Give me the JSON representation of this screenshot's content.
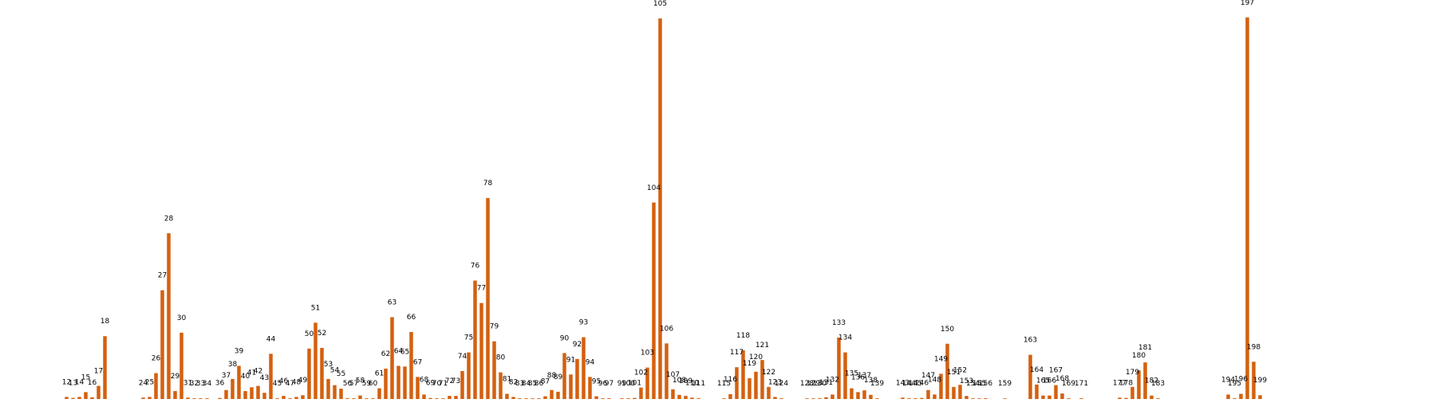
{
  "chart_data": {
    "type": "bar",
    "title": "",
    "xlabel": "",
    "ylabel": "",
    "grid": false,
    "axes_visible": false,
    "bar_color": "#d4600f",
    "ylim": [
      0,
      110
    ],
    "points": [
      {
        "x": 12,
        "y": 0.6,
        "label": "12"
      },
      {
        "x": 13,
        "y": 0.3,
        "label": "13"
      },
      {
        "x": 14,
        "y": 0.6,
        "label": "14"
      },
      {
        "x": 15,
        "y": 2.0,
        "label": "15"
      },
      {
        "x": 16,
        "y": 0.5,
        "label": "16"
      },
      {
        "x": 17,
        "y": 3.8,
        "label": "17"
      },
      {
        "x": 18,
        "y": 18.2,
        "label": "18"
      },
      {
        "x": 24,
        "y": 0.4,
        "label": "24"
      },
      {
        "x": 25,
        "y": 0.6,
        "label": "25"
      },
      {
        "x": 26,
        "y": 7.5,
        "label": "26"
      },
      {
        "x": 27,
        "y": 31.5,
        "label": "27"
      },
      {
        "x": 28,
        "y": 48.0,
        "label": "28"
      },
      {
        "x": 29,
        "y": 2.3,
        "label": "29"
      },
      {
        "x": 30,
        "y": 19.2,
        "label": "30"
      },
      {
        "x": 31,
        "y": 0.4,
        "label": "31"
      },
      {
        "x": 32,
        "y": 0.2,
        "label": "32"
      },
      {
        "x": 33,
        "y": 0.2,
        "label": "33"
      },
      {
        "x": 34,
        "y": 0.2,
        "label": "34"
      },
      {
        "x": 36,
        "y": 0.3,
        "label": "36"
      },
      {
        "x": 37,
        "y": 2.6,
        "label": "37"
      },
      {
        "x": 38,
        "y": 5.8,
        "label": "38"
      },
      {
        "x": 39,
        "y": 9.6,
        "label": "39"
      },
      {
        "x": 40,
        "y": 2.3,
        "label": "40"
      },
      {
        "x": 41,
        "y": 3.4,
        "label": "41"
      },
      {
        "x": 42,
        "y": 3.8,
        "label": "42"
      },
      {
        "x": 43,
        "y": 1.8,
        "label": "43"
      },
      {
        "x": 44,
        "y": 13.1,
        "label": "44"
      },
      {
        "x": 45,
        "y": 0.2,
        "label": "45"
      },
      {
        "x": 46,
        "y": 0.9,
        "label": "46"
      },
      {
        "x": 47,
        "y": 0.2,
        "label": "47"
      },
      {
        "x": 48,
        "y": 0.6,
        "label": "48"
      },
      {
        "x": 49,
        "y": 1.1,
        "label": "49"
      },
      {
        "x": 50,
        "y": 14.6,
        "label": "50"
      },
      {
        "x": 51,
        "y": 22.1,
        "label": "51"
      },
      {
        "x": 52,
        "y": 14.8,
        "label": "52"
      },
      {
        "x": 53,
        "y": 5.8,
        "label": "53"
      },
      {
        "x": 54,
        "y": 4.0,
        "label": "54"
      },
      {
        "x": 55,
        "y": 3.0,
        "label": "55"
      },
      {
        "x": 56,
        "y": 0.2,
        "label": "56"
      },
      {
        "x": 57,
        "y": 0.2,
        "label": "57"
      },
      {
        "x": 58,
        "y": 1.0,
        "label": "58"
      },
      {
        "x": 59,
        "y": 0.2,
        "label": "59"
      },
      {
        "x": 60,
        "y": 0.2,
        "label": "60"
      },
      {
        "x": 61,
        "y": 3.1,
        "label": "61"
      },
      {
        "x": 62,
        "y": 8.8,
        "label": "62"
      },
      {
        "x": 63,
        "y": 23.7,
        "label": "63"
      },
      {
        "x": 64,
        "y": 9.6,
        "label": "64"
      },
      {
        "x": 65,
        "y": 9.4,
        "label": "65"
      },
      {
        "x": 66,
        "y": 19.4,
        "label": "66"
      },
      {
        "x": 67,
        "y": 6.4,
        "label": "67"
      },
      {
        "x": 68,
        "y": 1.3,
        "label": "68"
      },
      {
        "x": 69,
        "y": 0.3,
        "label": "69"
      },
      {
        "x": 70,
        "y": 0.2,
        "label": "70"
      },
      {
        "x": 71,
        "y": 0.2,
        "label": "71"
      },
      {
        "x": 72,
        "y": 0.9,
        "label": "72"
      },
      {
        "x": 73,
        "y": 0.9,
        "label": "73"
      },
      {
        "x": 74,
        "y": 8.1,
        "label": "74"
      },
      {
        "x": 75,
        "y": 13.5,
        "label": "75"
      },
      {
        "x": 76,
        "y": 34.3,
        "label": "76"
      },
      {
        "x": 77,
        "y": 27.8,
        "label": "77"
      },
      {
        "x": 78,
        "y": 58.2,
        "label": "78"
      },
      {
        "x": 79,
        "y": 16.7,
        "label": "79"
      },
      {
        "x": 80,
        "y": 7.7,
        "label": "80"
      },
      {
        "x": 81,
        "y": 1.5,
        "label": "81"
      },
      {
        "x": 82,
        "y": 0.6,
        "label": "82"
      },
      {
        "x": 83,
        "y": 0.2,
        "label": "83"
      },
      {
        "x": 84,
        "y": 0.2,
        "label": "84"
      },
      {
        "x": 85,
        "y": 0.1,
        "label": "85"
      },
      {
        "x": 86,
        "y": 0.2,
        "label": "86"
      },
      {
        "x": 87,
        "y": 0.8,
        "label": "87"
      },
      {
        "x": 88,
        "y": 2.6,
        "label": "88"
      },
      {
        "x": 89,
        "y": 2.1,
        "label": "89"
      },
      {
        "x": 90,
        "y": 13.3,
        "label": "90"
      },
      {
        "x": 91,
        "y": 7.1,
        "label": "91"
      },
      {
        "x": 92,
        "y": 11.6,
        "label": "92"
      },
      {
        "x": 93,
        "y": 17.9,
        "label": "93"
      },
      {
        "x": 94,
        "y": 6.4,
        "label": "94"
      },
      {
        "x": 95,
        "y": 0.8,
        "label": "95"
      },
      {
        "x": 96,
        "y": 0.2,
        "label": "96"
      },
      {
        "x": 97,
        "y": 0.2,
        "label": "97"
      },
      {
        "x": 99,
        "y": 0.2,
        "label": "99"
      },
      {
        "x": 100,
        "y": 0.2,
        "label": "100"
      },
      {
        "x": 101,
        "y": 0.3,
        "label": "101"
      },
      {
        "x": 102,
        "y": 3.3,
        "label": "102"
      },
      {
        "x": 103,
        "y": 9.1,
        "label": "103"
      },
      {
        "x": 104,
        "y": 56.9,
        "label": "104"
      },
      {
        "x": 105,
        "y": 110.2,
        "label": "105"
      },
      {
        "x": 106,
        "y": 16.1,
        "label": "106"
      },
      {
        "x": 107,
        "y": 2.8,
        "label": "107"
      },
      {
        "x": 108,
        "y": 1.2,
        "label": "108"
      },
      {
        "x": 109,
        "y": 0.9,
        "label": "109"
      },
      {
        "x": 110,
        "y": 0.4,
        "label": "110"
      },
      {
        "x": 111,
        "y": 0.2,
        "label": "111"
      },
      {
        "x": 115,
        "y": 0.1,
        "label": "115"
      },
      {
        "x": 116,
        "y": 1.4,
        "label": "116"
      },
      {
        "x": 117,
        "y": 9.2,
        "label": "117"
      },
      {
        "x": 118,
        "y": 14.1,
        "label": "118"
      },
      {
        "x": 119,
        "y": 6.0,
        "label": "119"
      },
      {
        "x": 120,
        "y": 7.9,
        "label": "120"
      },
      {
        "x": 121,
        "y": 11.3,
        "label": "121"
      },
      {
        "x": 122,
        "y": 3.5,
        "label": "122"
      },
      {
        "x": 123,
        "y": 0.6,
        "label": "123"
      },
      {
        "x": 124,
        "y": 0.2,
        "label": "124"
      },
      {
        "x": 128,
        "y": 0.1,
        "label": "128"
      },
      {
        "x": 129,
        "y": 0.1,
        "label": "129"
      },
      {
        "x": 130,
        "y": 0.2,
        "label": "130"
      },
      {
        "x": 131,
        "y": 0.5,
        "label": "131"
      },
      {
        "x": 132,
        "y": 1.3,
        "label": "132"
      },
      {
        "x": 133,
        "y": 17.8,
        "label": "133"
      },
      {
        "x": 134,
        "y": 13.5,
        "label": "134"
      },
      {
        "x": 135,
        "y": 3.1,
        "label": "135"
      },
      {
        "x": 136,
        "y": 2.0,
        "label": "136"
      },
      {
        "x": 137,
        "y": 2.5,
        "label": "137"
      },
      {
        "x": 138,
        "y": 1.2,
        "label": "138"
      },
      {
        "x": 139,
        "y": 0.2,
        "label": "139"
      },
      {
        "x": 143,
        "y": 0.4,
        "label": "143"
      },
      {
        "x": 144,
        "y": 0.2,
        "label": "144"
      },
      {
        "x": 145,
        "y": 0.2,
        "label": "145"
      },
      {
        "x": 146,
        "y": 0.3,
        "label": "146"
      },
      {
        "x": 147,
        "y": 2.6,
        "label": "147"
      },
      {
        "x": 148,
        "y": 1.3,
        "label": "148"
      },
      {
        "x": 149,
        "y": 7.3,
        "label": "149"
      },
      {
        "x": 150,
        "y": 16.0,
        "label": "150"
      },
      {
        "x": 151,
        "y": 3.5,
        "label": "151"
      },
      {
        "x": 152,
        "y": 4.1,
        "label": "152"
      },
      {
        "x": 153,
        "y": 0.9,
        "label": "153"
      },
      {
        "x": 154,
        "y": 0.2,
        "label": "154"
      },
      {
        "x": 155,
        "y": 0.1,
        "label": "155"
      },
      {
        "x": 156,
        "y": 0.2,
        "label": "156"
      },
      {
        "x": 159,
        "y": 0.1,
        "label": "159"
      },
      {
        "x": 163,
        "y": 12.8,
        "label": "163"
      },
      {
        "x": 164,
        "y": 4.2,
        "label": "164"
      },
      {
        "x": 165,
        "y": 1.0,
        "label": "165"
      },
      {
        "x": 166,
        "y": 1.0,
        "label": "166"
      },
      {
        "x": 167,
        "y": 4.0,
        "label": "167"
      },
      {
        "x": 168,
        "y": 1.6,
        "label": "168"
      },
      {
        "x": 169,
        "y": 0.2,
        "label": "169"
      },
      {
        "x": 171,
        "y": 0.2,
        "label": "171"
      },
      {
        "x": 177,
        "y": 0.4,
        "label": "177"
      },
      {
        "x": 178,
        "y": 0.3,
        "label": "178"
      },
      {
        "x": 179,
        "y": 3.5,
        "label": "179"
      },
      {
        "x": 180,
        "y": 8.3,
        "label": "180"
      },
      {
        "x": 181,
        "y": 10.6,
        "label": "181"
      },
      {
        "x": 182,
        "y": 1.0,
        "label": "182"
      },
      {
        "x": 183,
        "y": 0.2,
        "label": "183"
      },
      {
        "x": 194,
        "y": 1.3,
        "label": "194"
      },
      {
        "x": 195,
        "y": 0.2,
        "label": "195"
      },
      {
        "x": 196,
        "y": 1.5,
        "label": "196"
      },
      {
        "x": 197,
        "y": 110.5,
        "label": "197"
      },
      {
        "x": 198,
        "y": 10.8,
        "label": "198"
      },
      {
        "x": 199,
        "y": 1.1,
        "label": "199"
      }
    ]
  }
}
